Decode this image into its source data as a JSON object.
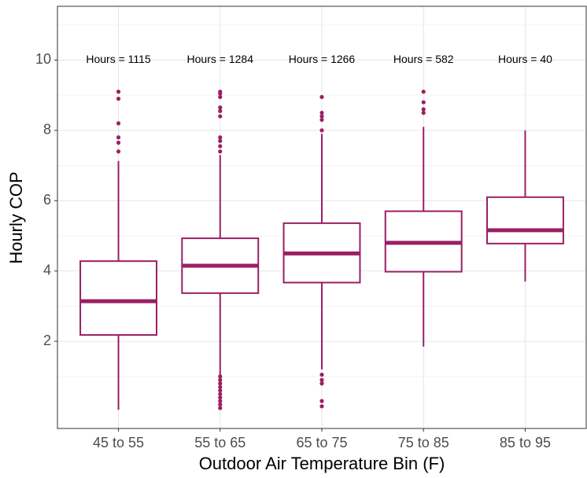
{
  "chart_data": {
    "type": "box",
    "x_label": "Outdoor Air Temperature Bin (F)",
    "y_label": "Hourly COP",
    "categories": [
      "45 to 55",
      "55 to 65",
      "65 to 75",
      "75 to 85",
      "85 to 95"
    ],
    "annotations": [
      "Hours = 1115",
      "Hours = 1284",
      "Hours = 1266",
      "Hours = 582",
      "Hours = 40"
    ],
    "annotation_y": 10,
    "color": "#9b1f63",
    "boxes": [
      {
        "low": 0.05,
        "q1": 2.18,
        "median": 3.14,
        "q3": 4.28,
        "high": 7.13,
        "outliers": [
          7.4,
          7.65,
          7.8,
          8.2,
          8.9,
          9.1
        ]
      },
      {
        "low": 1.05,
        "q1": 3.37,
        "median": 4.15,
        "q3": 4.93,
        "high": 7.3,
        "outliers": [
          0.1,
          0.2,
          0.3,
          0.4,
          0.5,
          0.6,
          0.7,
          0.8,
          0.9,
          1.0,
          7.4,
          7.55,
          7.7,
          7.8,
          8.4,
          8.55,
          8.65,
          8.95,
          9.05,
          9.1
        ]
      },
      {
        "low": 1.2,
        "q1": 3.67,
        "median": 4.5,
        "q3": 5.36,
        "high": 7.9,
        "outliers": [
          0.15,
          0.3,
          0.8,
          0.9,
          1.05,
          8.0,
          8.3,
          8.4,
          8.5,
          8.95
        ]
      },
      {
        "low": 1.85,
        "q1": 3.98,
        "median": 4.8,
        "q3": 5.7,
        "high": 8.1,
        "outliers": [
          8.5,
          8.6,
          8.8,
          9.1
        ]
      },
      {
        "low": 3.7,
        "q1": 4.78,
        "median": 5.16,
        "q3": 6.1,
        "high": 8.0,
        "outliers": []
      }
    ],
    "ylim": [
      -0.48,
      11.53
    ],
    "yticks": [
      2,
      4,
      6,
      8,
      10
    ],
    "yminorticks": [
      1,
      3,
      5,
      7,
      9,
      11
    ],
    "grid": true
  }
}
